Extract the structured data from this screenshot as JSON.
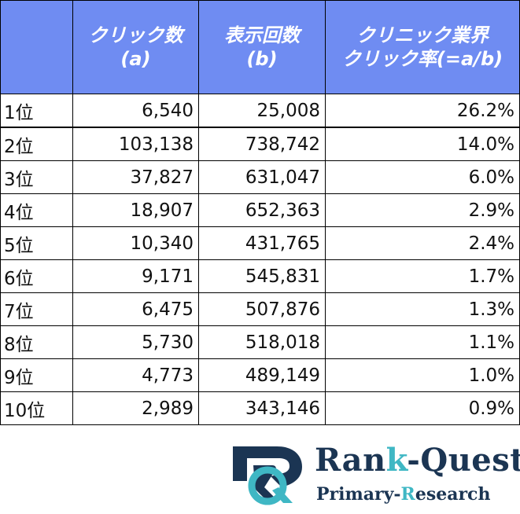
{
  "chart_data": {
    "type": "table",
    "columns": [
      {
        "line1": "",
        "line2": ""
      },
      {
        "line1": "クリック数",
        "line2": "(a)"
      },
      {
        "line1": "表示回数",
        "line2": "(b)"
      },
      {
        "line1": "クリニック業界",
        "line2": "クリック率(=a/b)"
      }
    ],
    "rows": [
      {
        "rank": "1位",
        "clicks": "6,540",
        "impressions": "25,008",
        "ctr": "26.2%"
      },
      {
        "rank": "2位",
        "clicks": "103,138",
        "impressions": "738,742",
        "ctr": "14.0%"
      },
      {
        "rank": "3位",
        "clicks": "37,827",
        "impressions": "631,047",
        "ctr": "6.0%"
      },
      {
        "rank": "4位",
        "clicks": "18,907",
        "impressions": "652,363",
        "ctr": "2.9%"
      },
      {
        "rank": "5位",
        "clicks": "10,340",
        "impressions": "431,765",
        "ctr": "2.4%"
      },
      {
        "rank": "6位",
        "clicks": "9,171",
        "impressions": "545,831",
        "ctr": "1.7%"
      },
      {
        "rank": "7位",
        "clicks": "6,475",
        "impressions": "507,876",
        "ctr": "1.3%"
      },
      {
        "rank": "8位",
        "clicks": "5,730",
        "impressions": "518,018",
        "ctr": "1.1%"
      },
      {
        "rank": "9位",
        "clicks": "4,773",
        "impressions": "489,149",
        "ctr": "1.0%"
      },
      {
        "rank": "10位",
        "clicks": "2,989",
        "impressions": "343,146",
        "ctr": "0.9%"
      }
    ]
  },
  "logo": {
    "brand_a": "Ran",
    "brand_hl": "k",
    "brand_b": "-Quest",
    "tagline_a": "Primary-",
    "tagline_hl": "R",
    "tagline_b": "esearch"
  },
  "colors": {
    "header_bg": "#6f8cf2",
    "logo_navy": "#1b3553",
    "logo_teal": "#3fb7c4"
  }
}
